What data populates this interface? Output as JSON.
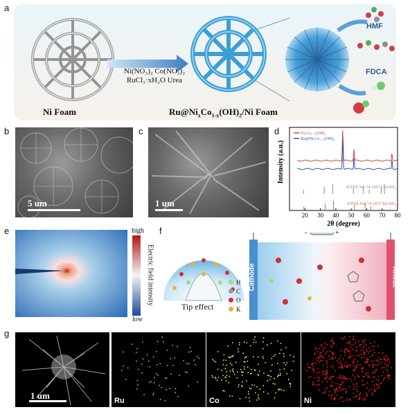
{
  "panels": {
    "a": {
      "label": "a",
      "ni_foam": "Ni Foam",
      "reagents_line1": "Ni(NO₃)₂   Co(NO₃)₂",
      "reagents_line2": "RuCl₃·xH₂O  Urea",
      "product_prefix": "Ru@Ni",
      "product_x": "x",
      "product_mid": "Co",
      "product_1mx": "1-x",
      "product_suffix": "(OH)",
      "product_2": "2",
      "product_end": "/Ni Foam",
      "hmf": "HMF",
      "fdca": "FDCA"
    },
    "b": {
      "label": "b",
      "scale": "5  um"
    },
    "c": {
      "label": "c",
      "scale": "1 um"
    },
    "d": {
      "label": "d"
    },
    "e": {
      "label": "e",
      "high": "high",
      "low": "low",
      "colorbar_title": "Electric field intensity"
    },
    "f": {
      "label": "f",
      "tip_effect": "Tip effect",
      "legend": [
        {
          "symbol": "H",
          "color": "#a8d870"
        },
        {
          "symbol": "C",
          "color": "#9a9a9a"
        },
        {
          "symbol": "O",
          "color": "#d03030"
        },
        {
          "symbol": "K",
          "color": "#f0b030"
        }
      ],
      "cathode": "Cathode",
      "anode": "Anode",
      "minus": "-",
      "plus": "+"
    },
    "g": {
      "label": "g",
      "scale": "1 um",
      "maps": [
        {
          "label": "Ru",
          "color": "#7ee040"
        },
        {
          "label": "Co",
          "color": "#f0f040"
        },
        {
          "label": "Ni",
          "color": "#ff2020"
        }
      ]
    }
  },
  "chart_data": {
    "type": "line",
    "xlabel": "2θ (degree)",
    "ylabel": "Intensity (a.u.)",
    "xlim": [
      10,
      80
    ],
    "xticks": [
      20,
      30,
      40,
      50,
      60,
      70,
      80
    ],
    "series": [
      {
        "name": "NiₓCo₁₋ₓ(OH)₂",
        "color": "#d04040",
        "peaks": [
          [
            44.5,
            1.0
          ],
          [
            51.8,
            0.35
          ],
          [
            76.4,
            0.25
          ]
        ]
      },
      {
        "name": "Ru@NiₓCo₁₋ₓ(OH)₂",
        "color": "#3050b0",
        "peaks": [
          [
            44.5,
            1.0
          ],
          [
            51.8,
            0.35
          ],
          [
            76.4,
            0.3
          ]
        ]
      }
    ],
    "references": [
      {
        "name": "JCPDS No.  74-1057 Co(OH)₂",
        "color": "#888888",
        "lines": [
          19.1,
          32.5,
          38.0,
          51.4,
          57.9,
          61.6,
          69.4,
          71.5
        ]
      },
      {
        "name": "JCPDS No.  74-2075 Ni(OH)₂",
        "color": "#c07050",
        "lines": [
          19.3,
          33.1,
          38.5,
          52.1,
          59.0,
          62.7
        ]
      }
    ]
  }
}
